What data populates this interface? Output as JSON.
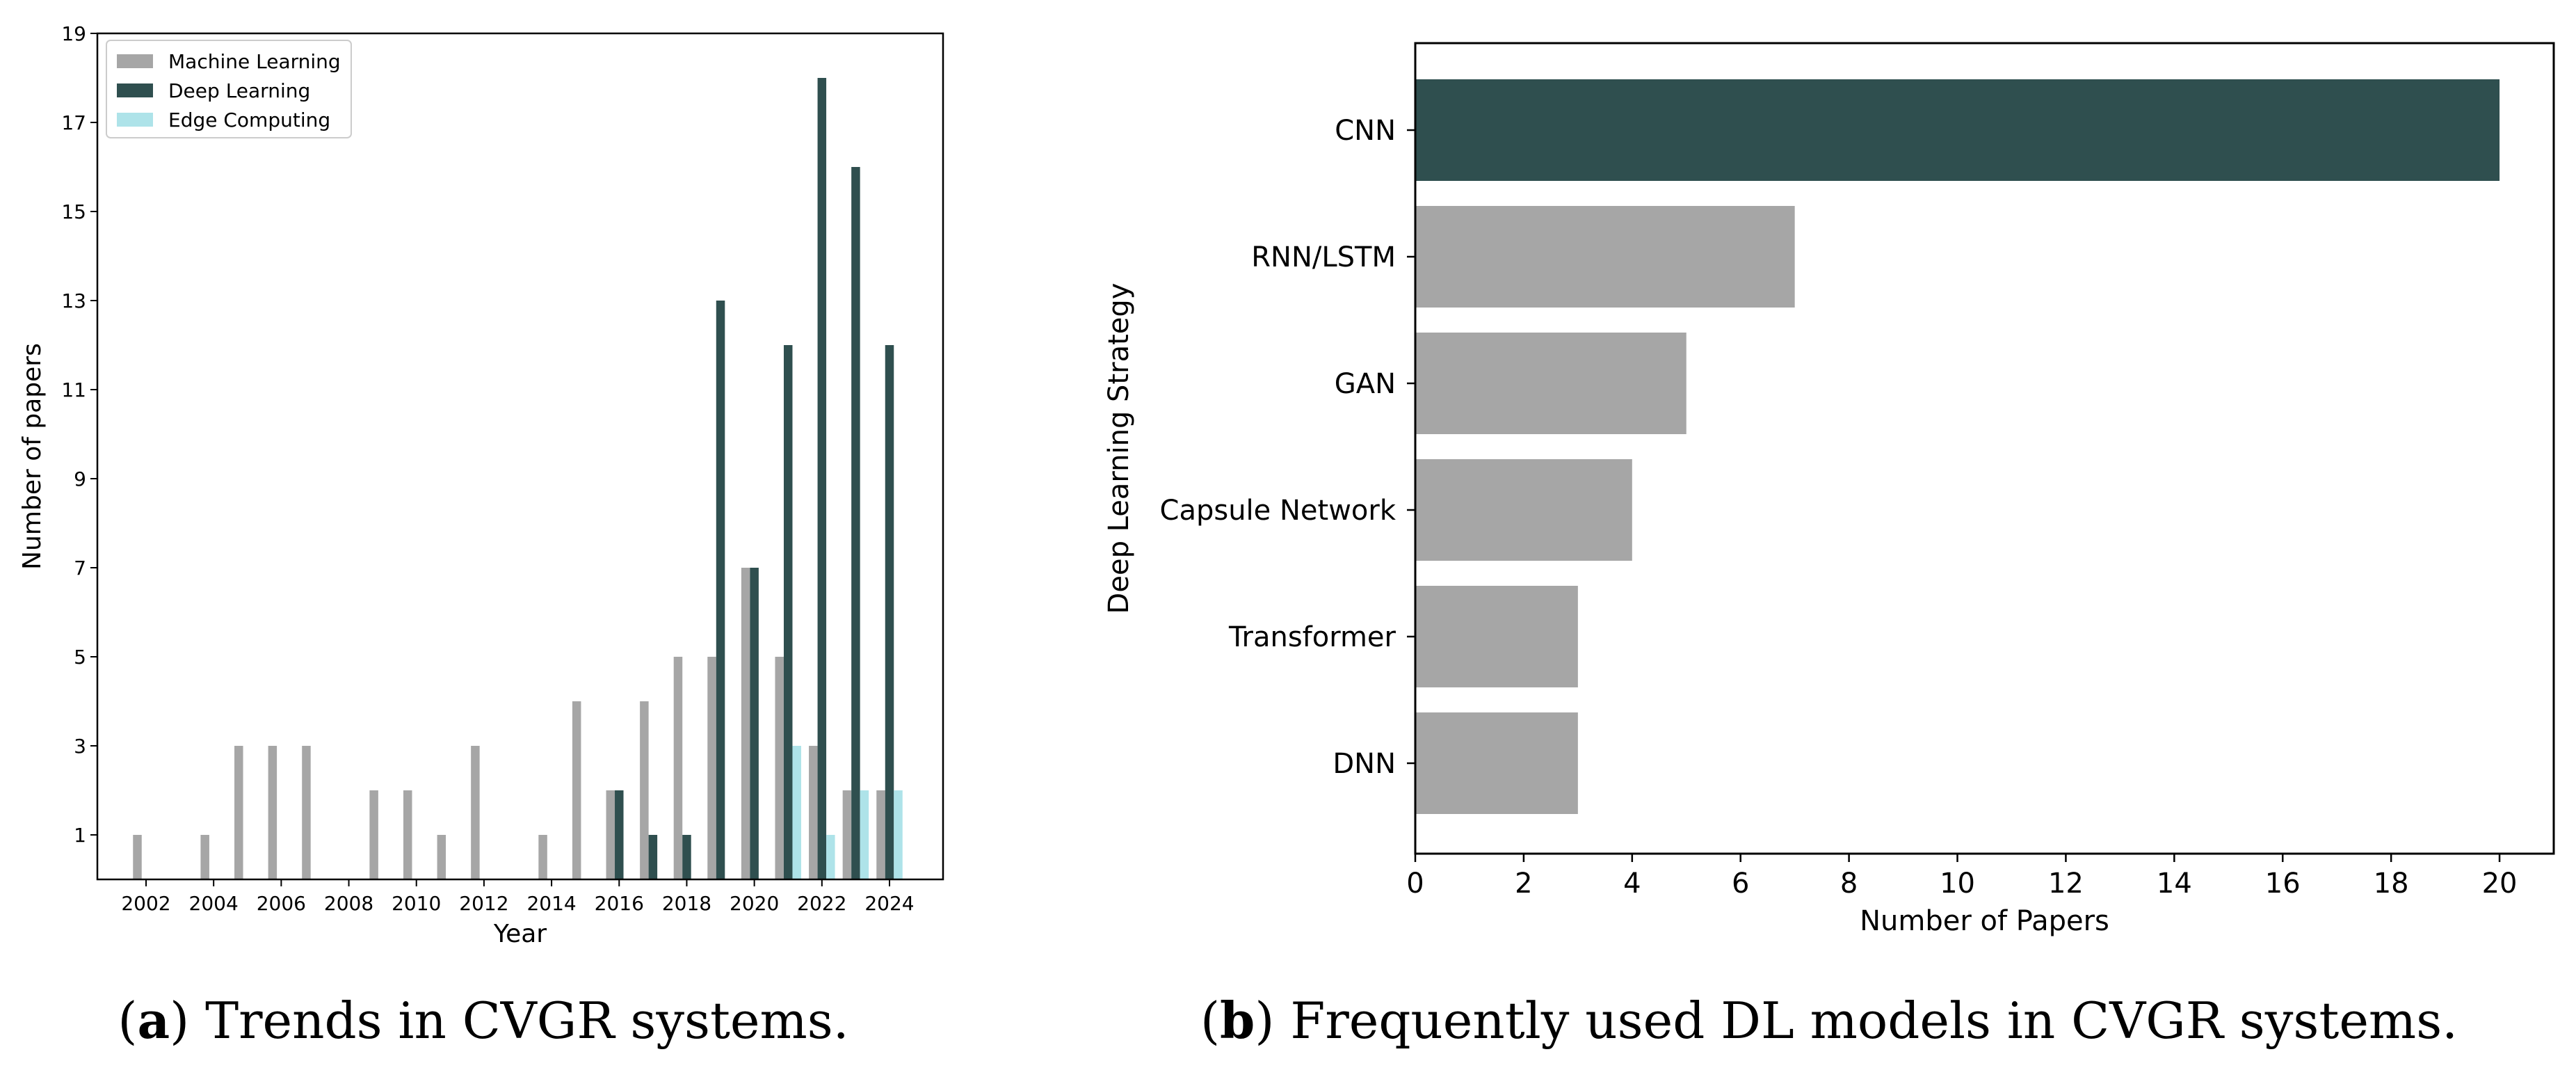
{
  "colors": {
    "machine_learning": "#a6a6a6",
    "deep_learning": "#2f4f4f",
    "edge_computing": "#aee3e9",
    "axis": "#000000"
  },
  "captions": {
    "a": {
      "label": "a",
      "text": "Trends in CVGR systems."
    },
    "b": {
      "label": "b",
      "text": "Frequently used DL models in CVGR systems."
    }
  },
  "chart_data": [
    {
      "type": "bar",
      "title": "",
      "xlabel": "Year",
      "ylabel": "Number of papers",
      "ylim": [
        0,
        19
      ],
      "yticks": [
        1,
        3,
        5,
        7,
        9,
        11,
        13,
        15,
        17,
        19
      ],
      "x": [
        2002,
        2003,
        2004,
        2005,
        2006,
        2007,
        2008,
        2009,
        2010,
        2011,
        2012,
        2013,
        2014,
        2015,
        2016,
        2017,
        2018,
        2019,
        2020,
        2021,
        2022,
        2023,
        2024
      ],
      "xticks": [
        "2002",
        "2004",
        "2006",
        "2008",
        "2010",
        "2012",
        "2014",
        "2016",
        "2018",
        "2020",
        "2022",
        "2024"
      ],
      "legend_position": "top-left",
      "series": [
        {
          "name": "Machine Learning",
          "values": [
            1,
            0,
            1,
            3,
            3,
            3,
            0,
            2,
            2,
            1,
            3,
            0,
            1,
            4,
            2,
            4,
            5,
            5,
            7,
            5,
            3,
            2,
            2
          ]
        },
        {
          "name": "Deep Learning",
          "values": [
            0,
            0,
            0,
            0,
            0,
            0,
            0,
            0,
            0,
            0,
            0,
            0,
            0,
            0,
            2,
            1,
            1,
            13,
            7,
            12,
            18,
            16,
            12
          ]
        },
        {
          "name": "Edge Computing",
          "values": [
            0,
            0,
            0,
            0,
            0,
            0,
            0,
            0,
            0,
            0,
            0,
            0,
            0,
            0,
            0,
            0,
            0,
            0,
            0,
            3,
            1,
            2,
            2
          ]
        }
      ]
    },
    {
      "type": "bar",
      "orientation": "horizontal",
      "title": "",
      "xlabel": "Number of Papers",
      "ylabel": "Deep Learning Strategy",
      "xlim": [
        0,
        21
      ],
      "xticks": [
        0,
        2,
        4,
        6,
        8,
        10,
        12,
        14,
        16,
        18,
        20
      ],
      "categories": [
        "CNN",
        "RNN/LSTM",
        "GAN",
        "Capsule Network",
        "Transformer",
        "DNN"
      ],
      "values": [
        20,
        7,
        5,
        4,
        3,
        3
      ],
      "highlight": "CNN"
    }
  ]
}
